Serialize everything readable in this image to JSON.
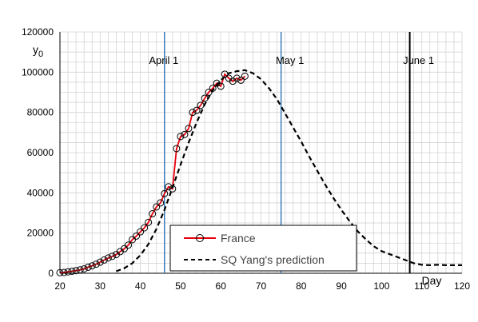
{
  "chart_data": {
    "type": "line",
    "title": "",
    "xlabel": "Day",
    "ylabel": "y0",
    "xlim": [
      20,
      120
    ],
    "ylim": [
      0,
      120000
    ],
    "x_ticks": [
      20,
      30,
      40,
      50,
      60,
      70,
      80,
      90,
      100,
      110,
      120
    ],
    "y_ticks": [
      0,
      20000,
      40000,
      60000,
      80000,
      100000,
      120000
    ],
    "grid": true,
    "legend_position": "bottom-center",
    "annotations": [
      {
        "label": "April 1",
        "x": 46,
        "color": "#2e75b6"
      },
      {
        "label": "May 1",
        "x": 75,
        "color": "#2e75b6"
      },
      {
        "label": "June 1",
        "x": 107,
        "color": "#000000"
      }
    ],
    "series": [
      {
        "name": "France",
        "style": "line-markers",
        "color": "#e8000b",
        "x": [
          20,
          21,
          22,
          23,
          24,
          25,
          26,
          27,
          28,
          29,
          30,
          31,
          32,
          33,
          34,
          35,
          36,
          37,
          38,
          39,
          40,
          41,
          42,
          43,
          44,
          45,
          46,
          47,
          48,
          49,
          50,
          51,
          52,
          53,
          54,
          55,
          56,
          57,
          58,
          59,
          60,
          61,
          62,
          63,
          64,
          65,
          66
        ],
        "y": [
          300,
          400,
          700,
          1000,
          1300,
          1700,
          2200,
          3000,
          3700,
          4500,
          5500,
          6600,
          7600,
          8400,
          9300,
          10800,
          12200,
          14000,
          16700,
          18500,
          20600,
          22600,
          25300,
          29600,
          33000,
          35000,
          39600,
          43000,
          42000,
          62000,
          68000,
          69000,
          72000,
          80000,
          81000,
          83500,
          87000,
          90000,
          92000,
          94500,
          93000,
          99000,
          97000,
          95500,
          97000,
          96000,
          98000
        ]
      },
      {
        "name": "SQ Yang's prediction",
        "style": "dashed",
        "color": "#000000",
        "x": [
          34,
          36,
          38,
          40,
          42,
          44,
          46,
          48,
          50,
          52,
          54,
          56,
          58,
          60,
          62,
          64,
          66,
          68,
          70,
          72,
          74,
          76,
          78,
          80,
          82,
          84,
          86,
          88,
          90,
          92,
          94,
          96,
          98,
          100,
          102,
          104,
          106,
          108,
          110,
          112,
          114,
          116,
          118,
          120
        ],
        "y": [
          1000,
          2500,
          5000,
          9000,
          14500,
          22000,
          31500,
          42500,
          54000,
          65000,
          75000,
          84000,
          91000,
          96000,
          99500,
          100500,
          101000,
          99500,
          96500,
          92000,
          86500,
          79500,
          72500,
          65500,
          58000,
          51000,
          44000,
          37500,
          31500,
          26000,
          21000,
          17000,
          13500,
          11000,
          9500,
          8000,
          6500,
          5000,
          4200,
          4000,
          4200,
          4000,
          4000,
          4000
        ]
      }
    ]
  }
}
